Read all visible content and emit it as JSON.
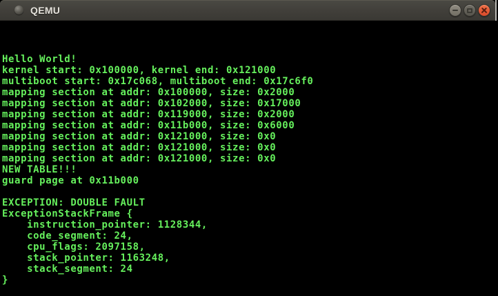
{
  "window": {
    "title": "QEMU",
    "controls": {
      "minimize_icon": "minus",
      "maximize_icon": "square-outline",
      "close_icon": "x"
    }
  },
  "colors": {
    "terminal_green": "#66f15d",
    "terminal_background": "#000000",
    "titlebar_gray": "#413f3a",
    "title_text": "#e4e1da",
    "close_button_orange": "#e2573b",
    "window_edge": "#b9b8b4"
  },
  "terminal": {
    "lines": [
      "",
      "",
      "",
      "Hello World!",
      "kernel start: 0x100000, kernel end: 0x121000",
      "multiboot start: 0x17c068, multiboot end: 0x17c6f0",
      "mapping section at addr: 0x100000, size: 0x2000",
      "mapping section at addr: 0x102000, size: 0x17000",
      "mapping section at addr: 0x119000, size: 0x2000",
      "mapping section at addr: 0x11b000, size: 0x6000",
      "mapping section at addr: 0x121000, size: 0x0",
      "mapping section at addr: 0x121000, size: 0x0",
      "mapping section at addr: 0x121000, size: 0x0",
      "NEW TABLE!!!",
      "guard page at 0x11b000",
      "",
      "EXCEPTION: DOUBLE FAULT",
      "ExceptionStackFrame {",
      "    instruction_pointer: 1128344,",
      "    code_segment: 24,",
      "    cpu_flags: 2097158,",
      "    stack_pointer: 1163248,",
      "    stack_segment: 24",
      "}"
    ]
  }
}
